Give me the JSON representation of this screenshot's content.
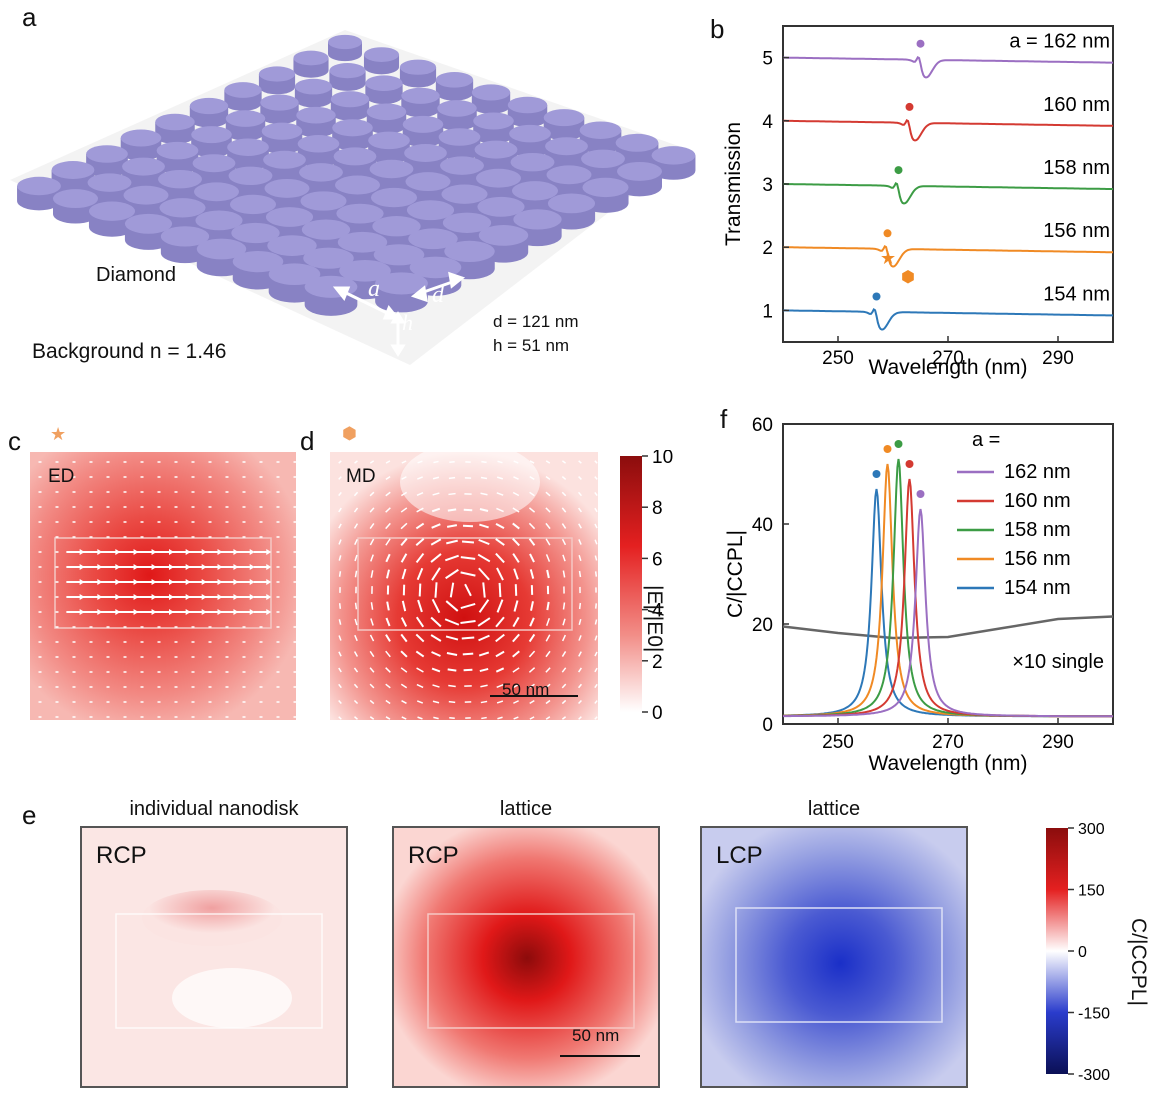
{
  "panel_labels": {
    "a": "a",
    "b": "b",
    "c": "c",
    "d": "d",
    "e": "e",
    "f": "f"
  },
  "panel_a": {
    "material": "Diamond",
    "background": "Background n = 1.46",
    "label_a": "a",
    "label_d": "d",
    "label_h": "h",
    "param_d": "d = 121 nm",
    "param_h": "h = 51 nm",
    "disk_color": "#a09ad8"
  },
  "panel_c": {
    "marker": "★",
    "mode": "ED",
    "marker_color": "#f0a060"
  },
  "panel_d": {
    "marker": "⬢",
    "mode": "MD",
    "scalebar": "50 nm"
  },
  "colorbar_E": {
    "title": "|E|/|E0|",
    "ticks": [
      "10",
      "8",
      "6",
      "4",
      "2",
      "0"
    ]
  },
  "panel_e": {
    "maps": [
      {
        "title": "individual nanodisk",
        "pol": "RCP"
      },
      {
        "title": "lattice",
        "pol": "RCP"
      },
      {
        "title": "lattice",
        "pol": "LCP"
      }
    ],
    "scalebar": "50 nm"
  },
  "colorbar_C": {
    "title": "C/|CCPL|",
    "ticks": [
      "300",
      "150",
      "0",
      "-150",
      "-300"
    ]
  },
  "chart_data": [
    {
      "type": "line",
      "panel": "b",
      "xlabel": "Wavelength (nm)",
      "ylabel": "Transmission",
      "xlim": [
        240,
        300
      ],
      "ylim": [
        0.5,
        5.5
      ],
      "xticks": [
        250,
        270,
        290
      ],
      "yticks": [
        1,
        2,
        3,
        4,
        5
      ],
      "series": [
        {
          "name": "a = 162 nm",
          "offset": 4,
          "resonance": 265,
          "color": "#9b6fc2"
        },
        {
          "name": "160 nm",
          "offset": 3,
          "resonance": 263,
          "color": "#d43a32"
        },
        {
          "name": "158 nm",
          "offset": 2,
          "resonance": 261,
          "color": "#3c9c45"
        },
        {
          "name": "156 nm",
          "offset": 1,
          "resonance": 259,
          "color": "#f08a24"
        },
        {
          "name": "154 nm",
          "offset": 0,
          "resonance": 257,
          "color": "#2d78b8"
        }
      ]
    },
    {
      "type": "line",
      "panel": "f",
      "xlabel": "Wavelength (nm)",
      "ylabel": "C/|CCPL|",
      "xlim": [
        240,
        300
      ],
      "ylim": [
        0,
        60
      ],
      "xticks": [
        250,
        270,
        290
      ],
      "yticks": [
        0,
        20,
        40,
        60
      ],
      "legend_title": "a =",
      "series": [
        {
          "name": "162 nm",
          "peak_x": 265,
          "peak_y": 43,
          "color": "#9b6fc2"
        },
        {
          "name": "160 nm",
          "peak_x": 263,
          "peak_y": 49,
          "color": "#d43a32"
        },
        {
          "name": "158 nm",
          "peak_x": 261,
          "peak_y": 53,
          "color": "#3c9c45"
        },
        {
          "name": "156 nm",
          "peak_x": 259,
          "peak_y": 52,
          "color": "#f08a24"
        },
        {
          "name": "154 nm",
          "peak_x": 257,
          "peak_y": 47,
          "color": "#2d78b8"
        }
      ],
      "single": {
        "name": "×10 single",
        "x": [
          240,
          250,
          260,
          270,
          280,
          290,
          300
        ],
        "y": [
          19.5,
          18.2,
          17.2,
          17.4,
          19.2,
          21,
          21.5
        ],
        "color": "#666666"
      }
    }
  ]
}
